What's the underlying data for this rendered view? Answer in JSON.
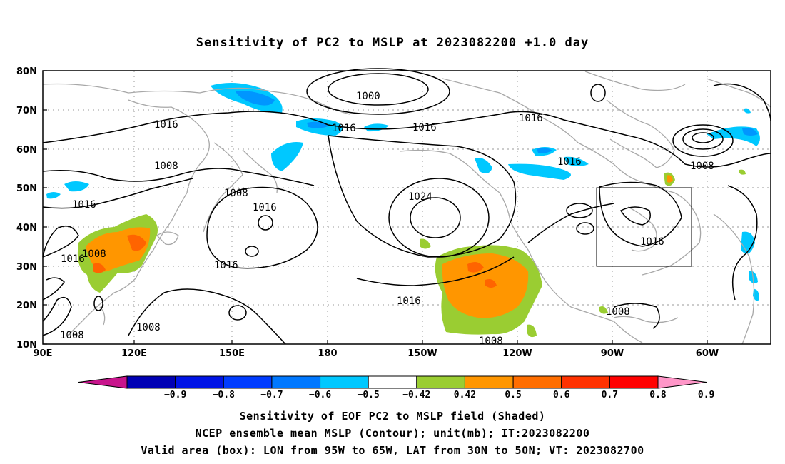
{
  "title": "Sensitivity of PC2 to MSLP at 2023082200 +1.0 day",
  "map": {
    "lat_ticks": [
      "80N",
      "70N",
      "60N",
      "50N",
      "40N",
      "30N",
      "20N",
      "10N"
    ],
    "lon_ticks": [
      "90E",
      "120E",
      "150E",
      "180",
      "150W",
      "120W",
      "90W",
      "60W"
    ],
    "contour_labels": [
      "1000",
      "1016",
      "1016",
      "1016",
      "1016",
      "1008",
      "1008",
      "1016",
      "1008",
      "1016",
      "1024",
      "1016",
      "1016",
      "1016",
      "1008",
      "1016",
      "1016",
      "1016",
      "1008",
      "1008",
      "1008",
      "1008"
    ],
    "valid_box": {
      "lon": [
        "95W",
        "65W"
      ],
      "lat": [
        "30N",
        "50N"
      ]
    },
    "colors": {
      "coast": "#a8a8a8",
      "contour": "#000000",
      "neg_light": "#00c8ff",
      "neg_mid": "#0096ff",
      "pos_green": "#9acd32",
      "pos_orange": "#ff9600",
      "pos_dark": "#ff6400"
    }
  },
  "colorbar": {
    "labels": [
      "-0.9",
      "-0.8",
      "-0.7",
      "-0.6",
      "-0.5",
      "-0.42",
      "0.42",
      "0.5",
      "0.6",
      "0.7",
      "0.8",
      "0.9"
    ],
    "colors": [
      "#c8148c",
      "#0000b4",
      "#0014e6",
      "#003cff",
      "#0078ff",
      "#00c8ff",
      "#ffffff",
      "#9acd32",
      "#ff9600",
      "#ff6e00",
      "#ff3200",
      "#ff0000",
      "#ff96c8"
    ]
  },
  "caption": {
    "line1": "Sensitivity of EOF PC2 to MSLP field (Shaded)",
    "line2": "NCEP ensemble mean MSLP (Contour); unit(mb); IT:2023082200",
    "line3": "Valid area (box): LON from 95W to 65W, LAT from 30N to 50N; VT: 2023082700"
  }
}
